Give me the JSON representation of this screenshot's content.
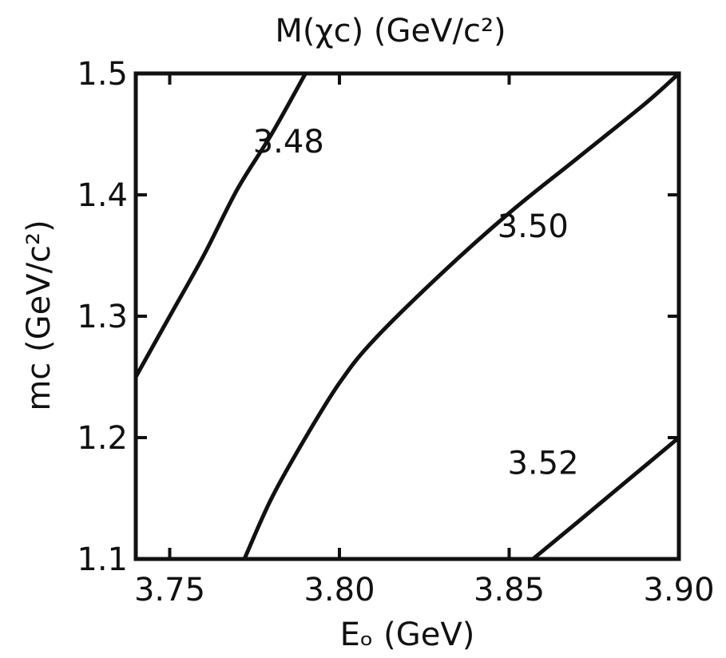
{
  "chart_data": {
    "type": "line",
    "title": "M(χc)  (GeV/c²)",
    "xlabel": "Eₒ (GeV)",
    "ylabel": "mc (GeV/c²)",
    "xlim": [
      3.74,
      3.9
    ],
    "ylim": [
      1.1,
      1.5
    ],
    "x_ticks": [
      3.75,
      3.8,
      3.85,
      3.9
    ],
    "x_tick_labels": [
      "3.75",
      "3.80",
      "3.85",
      "3.90"
    ],
    "y_ticks": [
      1.1,
      1.2,
      1.3,
      1.4,
      1.5
    ],
    "y_tick_labels": [
      "1.1",
      "1.2",
      "1.3",
      "1.4",
      "1.5"
    ],
    "grid": false,
    "series": [
      {
        "name": "3.48",
        "points": [
          [
            3.74,
            1.25
          ],
          [
            3.75,
            1.3
          ],
          [
            3.76,
            1.35
          ],
          [
            3.77,
            1.405
          ],
          [
            3.78,
            1.45
          ],
          [
            3.79,
            1.5
          ]
        ]
      },
      {
        "name": "3.50",
        "points": [
          [
            3.772,
            1.1
          ],
          [
            3.78,
            1.15
          ],
          [
            3.79,
            1.2
          ],
          [
            3.8,
            1.245
          ],
          [
            3.81,
            1.28
          ],
          [
            3.83,
            1.335
          ],
          [
            3.85,
            1.385
          ],
          [
            3.87,
            1.43
          ],
          [
            3.89,
            1.475
          ],
          [
            3.9,
            1.5
          ]
        ]
      },
      {
        "name": "3.52",
        "points": [
          [
            3.857,
            1.1
          ],
          [
            3.87,
            1.13
          ],
          [
            3.885,
            1.165
          ],
          [
            3.9,
            1.2
          ]
        ]
      }
    ],
    "curve_labels": [
      {
        "text": "3.48",
        "x": 3.785,
        "y": 1.435
      },
      {
        "text": "3.50",
        "x": 3.857,
        "y": 1.365
      },
      {
        "text": "3.52",
        "x": 3.86,
        "y": 1.17
      }
    ]
  }
}
